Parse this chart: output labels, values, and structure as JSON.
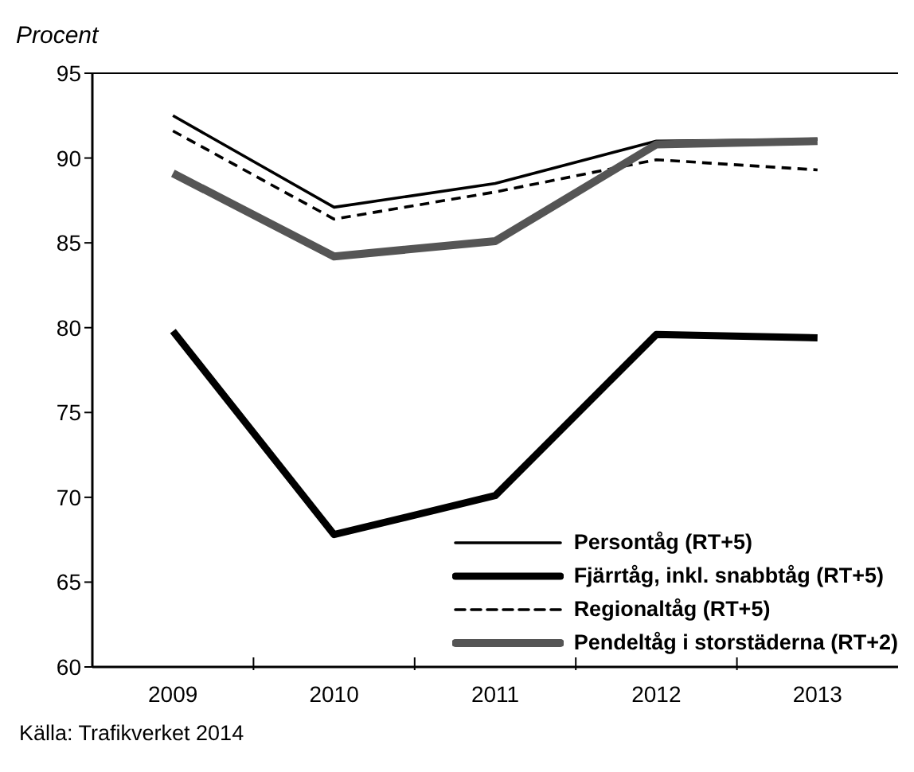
{
  "chart_data": {
    "type": "line",
    "ylabel": "Procent",
    "categories": [
      "2009",
      "2010",
      "2011",
      "2012",
      "2013"
    ],
    "ylim": [
      60,
      95
    ],
    "yticks": [
      60,
      65,
      70,
      75,
      80,
      85,
      90,
      95
    ],
    "grid": false,
    "legend": "bottom right",
    "marker": "none",
    "annotations": [
      "Källa: Trafikverket 2014"
    ],
    "series": [
      {
        "name": "Persontåg (RT+5)",
        "color": "#000000",
        "line_style": "solid",
        "values": [
          92.5,
          87.1,
          88.5,
          91.0,
          91.1
        ]
      },
      {
        "name": "Fjärrtåg, inkl. snabbtåg (RT+5)",
        "color": "#000000",
        "line_style": "solid",
        "values": [
          79.8,
          67.8,
          70.1,
          79.6,
          79.4
        ]
      },
      {
        "name": "Regionaltåg (RT+5)",
        "color": "#000000",
        "line_style": "dashed",
        "values": [
          91.6,
          86.4,
          88.0,
          89.9,
          89.3
        ]
      },
      {
        "name": "Pendeltåg i storstäderna (RT+2)",
        "color": "#555555",
        "line_style": "solid",
        "values": [
          89.1,
          84.2,
          85.1,
          90.8,
          91.0
        ]
      }
    ]
  }
}
